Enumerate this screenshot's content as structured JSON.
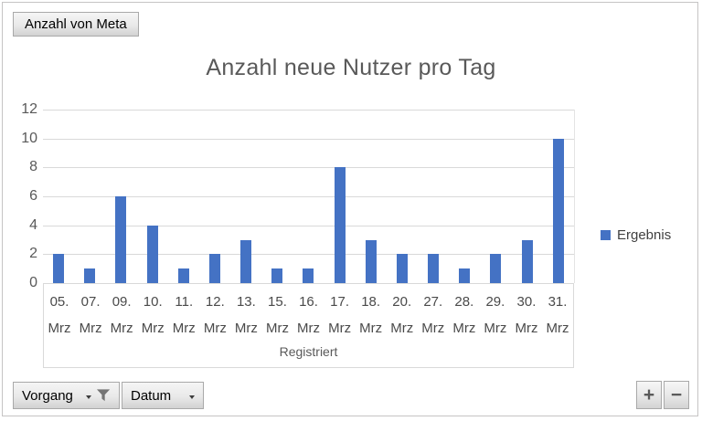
{
  "pivot": {
    "value_field_button": "Anzahl von Meta",
    "axis_field_buttons": [
      {
        "label": "Vorgang",
        "has_filter": true
      },
      {
        "label": "Datum",
        "has_filter": false
      }
    ],
    "expand_button": "+",
    "collapse_button": "−"
  },
  "chart_data": {
    "type": "bar",
    "title": "Anzahl neue Nutzer pro Tag",
    "categories": [
      "05. Mrz",
      "07. Mrz",
      "09. Mrz",
      "10. Mrz",
      "11. Mrz",
      "12. Mrz",
      "13. Mrz",
      "15. Mrz",
      "16. Mrz",
      "17. Mrz",
      "18. Mrz",
      "20. Mrz",
      "27. Mrz",
      "28. Mrz",
      "29. Mrz",
      "30. Mrz",
      "31. Mrz"
    ],
    "series": [
      {
        "name": "Ergebnis",
        "values": [
          2,
          1,
          6,
          4,
          1,
          2,
          3,
          1,
          1,
          8,
          3,
          2,
          2,
          1,
          2,
          3,
          10
        ]
      }
    ],
    "xlabel": "Registriert",
    "ylabel": "",
    "ylim": [
      0,
      12
    ],
    "ytick_step": 2,
    "grid": true,
    "legend_position": "right",
    "bar_color": "#4472C4",
    "gridline_color": "#D9D9D9",
    "title_color": "#595959"
  }
}
